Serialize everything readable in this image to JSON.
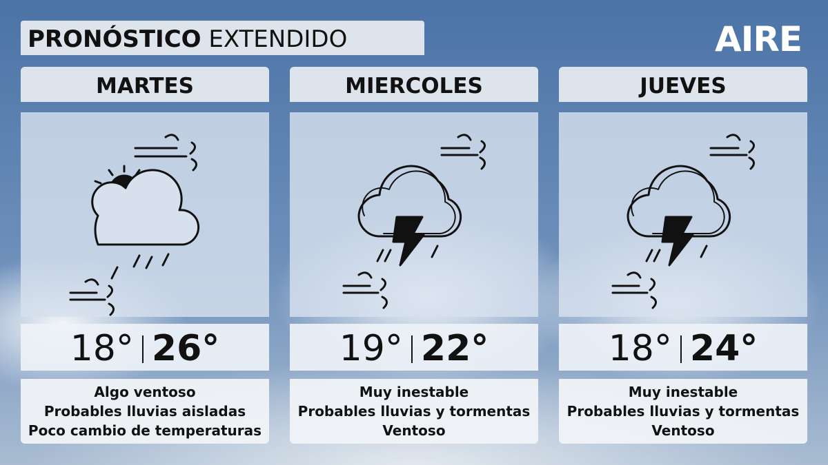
{
  "header": {
    "title_bold": "PRONÓSTICO",
    "title_regular": "EXTENDIDO",
    "brand": "AIRE"
  },
  "days": [
    {
      "name": "MARTES",
      "min": "18°",
      "max": "26°",
      "lines": [
        "Algo ventoso",
        "Probables lluvias aisladas",
        "Poco cambio de temperaturas"
      ]
    },
    {
      "name": "MIERCOLES",
      "min": "19°",
      "max": "22°",
      "lines": [
        "Muy inestable",
        "Probables lluvias y tormentas",
        "Ventoso"
      ]
    },
    {
      "name": "JUEVES",
      "min": "18°",
      "max": "24°",
      "lines": [
        "Muy inestable",
        "Probables lluvias y tormentas",
        "Ventoso"
      ]
    }
  ]
}
